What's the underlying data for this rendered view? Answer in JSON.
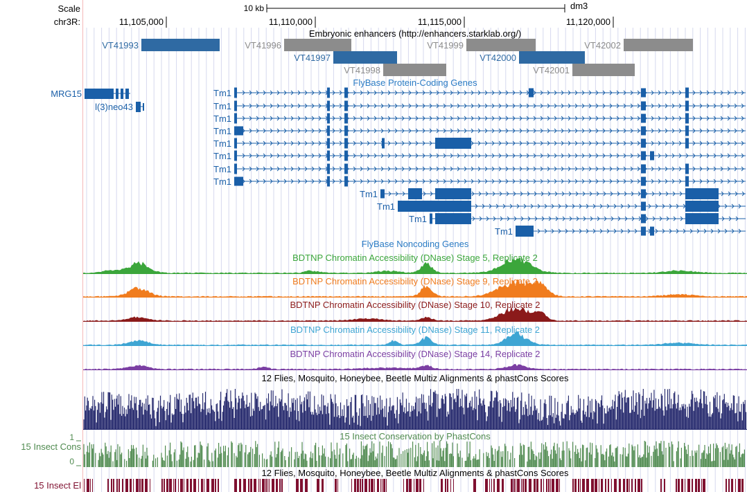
{
  "header": {
    "scale_label": "Scale",
    "scale_bar_label": "10 kb",
    "assembly": "dm3",
    "chrom_label": "chr3R:"
  },
  "ruler": {
    "ticks": [
      "11,105,000",
      "11,110,000",
      "11,115,000",
      "11,120,000"
    ]
  },
  "tracks": {
    "enhancers": {
      "title": "Embryonic enhancers (http://enhancers.starklab.org/)",
      "items": [
        "VT41993",
        "VT41996",
        "VT41997",
        "VT41998",
        "VT41999",
        "VT42000",
        "VT42001",
        "VT42002"
      ]
    },
    "coding_genes": {
      "title": "FlyBase Protein-Coding Genes",
      "left_genes": [
        "MRG15",
        "l(3)neo43"
      ],
      "transcript_label": "Tm1"
    },
    "noncoding": {
      "title": "FlyBase Noncoding Genes"
    },
    "dnase": [
      {
        "title": "BDTNP Chromatin Accessibility (DNase) Stage 5, Replicate 2",
        "color": "#3ba63b"
      },
      {
        "title": "BDTNP Chromatin Accessibility (DNase) Stage 9, Replicate 2",
        "color": "#f07c1e"
      },
      {
        "title": "BDTNP Chromatin Accessibility (DNase) Stage 10, Replicate 2",
        "color": "#8b1a1a"
      },
      {
        "title": "BDTNP Chromatin Accessibility (DNase) Stage 11, Replicate 2",
        "color": "#3ea5d3"
      },
      {
        "title": "BDTNP Chromatin Accessibility (DNase) Stage 14, Replicate 2",
        "color": "#7b3fa3"
      }
    ],
    "multiz": {
      "title": "12 Flies, Mosquito, Honeybee, Beetle Multiz Alignments & phastCons Scores"
    },
    "cons15": {
      "title": "15 Insect Conservation by PhastCons",
      "side_label": "15 Insect Cons",
      "axis_max": "1",
      "axis_min": "0"
    },
    "elements": {
      "title": "12 Flies, Mosquito, Honeybee, Beetle Multiz Alignments & phastCons Scores",
      "side_label": "15 Insect El"
    }
  },
  "colors": {
    "gene_blue": "#1a5fa8",
    "enhancer_blue": "#2f6aa3",
    "enhancer_gray": "#8c8c8c",
    "multiz_navy": "#1b1f66",
    "cons_green": "#4f8a4f",
    "element_maroon": "#7f1030",
    "grid": "#d6d8ee",
    "side_line": "#f4b8b8"
  }
}
